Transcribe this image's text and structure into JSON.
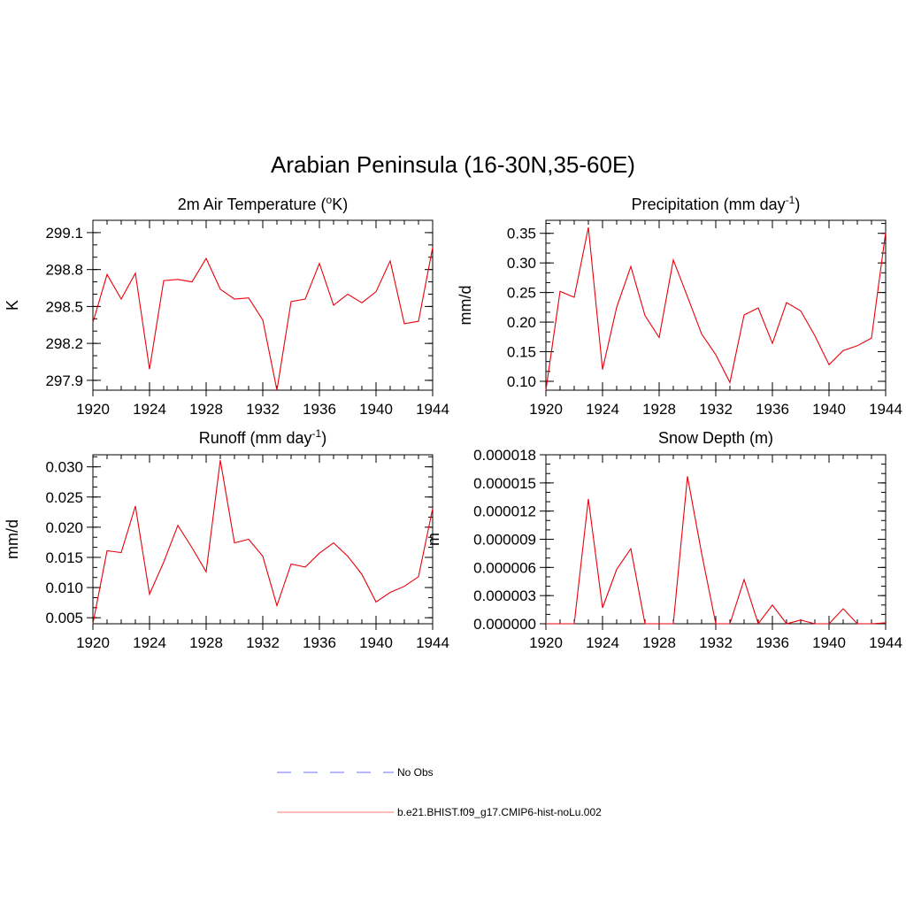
{
  "title": "Arabian Peninsula (16-30N,35-60E)",
  "colors": {
    "model": "#e8000b",
    "obs": "#a0a0ff",
    "legend_model": "#ff9090"
  },
  "legend": [
    {
      "label": "No Obs",
      "style": "dashed"
    },
    {
      "label": "b.e21.BHIST.f09_g17.CMIP6-hist-noLu.002",
      "style": "solid"
    }
  ],
  "chart_data": [
    {
      "type": "line",
      "title_parts": [
        "2m Air Temperature (",
        "o",
        "K)"
      ],
      "title_sup_index": 1,
      "ylabel": "K",
      "xlim": [
        1920,
        1944
      ],
      "ylim": [
        297.82,
        299.2
      ],
      "xticks": [
        "1920",
        "1924",
        "1928",
        "1932",
        "1936",
        "1940",
        "1944"
      ],
      "yticks": [
        "297.9",
        "298.2",
        "298.5",
        "298.8",
        "299.1"
      ],
      "yticks_values": [
        297.9,
        298.2,
        298.5,
        298.8,
        299.1
      ],
      "x": [
        1920,
        1921,
        1922,
        1923,
        1924,
        1925,
        1926,
        1927,
        1928,
        1929,
        1930,
        1931,
        1932,
        1933,
        1934,
        1935,
        1936,
        1937,
        1938,
        1939,
        1940,
        1941,
        1942,
        1943,
        1944
      ],
      "series": [
        {
          "values": [
            298.37,
            298.76,
            298.56,
            298.77,
            297.99,
            298.71,
            298.72,
            298.7,
            298.89,
            298.64,
            298.56,
            298.57,
            298.39,
            297.82,
            298.54,
            298.56,
            298.85,
            298.51,
            298.6,
            298.53,
            298.62,
            298.87,
            298.36,
            298.38,
            298.98
          ]
        }
      ]
    },
    {
      "type": "line",
      "title_parts": [
        "Precipitation (mm day",
        "-1",
        ")"
      ],
      "title_sup_index": 1,
      "ylabel": "mm/d",
      "xlim": [
        1920,
        1944
      ],
      "ylim": [
        0.085,
        0.372
      ],
      "xticks": [
        "1920",
        "1924",
        "1928",
        "1932",
        "1936",
        "1940",
        "1944"
      ],
      "yticks": [
        "0.10",
        "0.15",
        "0.20",
        "0.25",
        "0.30",
        "0.35"
      ],
      "yticks_values": [
        0.1,
        0.15,
        0.2,
        0.25,
        0.3,
        0.35
      ],
      "x": [
        1920,
        1921,
        1922,
        1923,
        1924,
        1925,
        1926,
        1927,
        1928,
        1929,
        1930,
        1931,
        1932,
        1933,
        1934,
        1935,
        1936,
        1937,
        1938,
        1939,
        1940,
        1941,
        1942,
        1943,
        1944
      ],
      "series": [
        {
          "values": [
            0.085,
            0.252,
            0.242,
            0.36,
            0.12,
            0.225,
            0.294,
            0.211,
            0.174,
            0.305,
            0.243,
            0.18,
            0.145,
            0.098,
            0.212,
            0.224,
            0.164,
            0.233,
            0.219,
            0.177,
            0.128,
            0.152,
            0.16,
            0.173,
            0.352
          ]
        }
      ]
    },
    {
      "type": "line",
      "title_parts": [
        "Runoff (mm day",
        "-1",
        ")"
      ],
      "title_sup_index": 1,
      "ylabel": "mm/d",
      "xlim": [
        1920,
        1944
      ],
      "ylim": [
        0.004,
        0.032
      ],
      "xticks": [
        "1920",
        "1924",
        "1928",
        "1932",
        "1936",
        "1940",
        "1944"
      ],
      "yticks": [
        "0.005",
        "0.010",
        "0.015",
        "0.020",
        "0.025",
        "0.030"
      ],
      "yticks_values": [
        0.005,
        0.01,
        0.015,
        0.02,
        0.025,
        0.03
      ],
      "x": [
        1920,
        1921,
        1922,
        1923,
        1924,
        1925,
        1926,
        1927,
        1928,
        1929,
        1930,
        1931,
        1932,
        1933,
        1934,
        1935,
        1936,
        1937,
        1938,
        1939,
        1940,
        1941,
        1942,
        1943,
        1944
      ],
      "series": [
        {
          "values": [
            0.004,
            0.0161,
            0.0158,
            0.0235,
            0.0089,
            0.0142,
            0.0203,
            0.0166,
            0.0126,
            0.0311,
            0.0174,
            0.018,
            0.0152,
            0.007,
            0.0139,
            0.0134,
            0.0157,
            0.0174,
            0.0152,
            0.0122,
            0.0076,
            0.0092,
            0.0102,
            0.0118,
            0.0231
          ]
        }
      ]
    },
    {
      "type": "line",
      "title_parts": [
        "Snow Depth (m)"
      ],
      "title_sup_index": -1,
      "ylabel": "m",
      "xlim": [
        1920,
        1944
      ],
      "ylim": [
        0.0,
        1.8e-05
      ],
      "xticks": [
        "1920",
        "1924",
        "1928",
        "1932",
        "1936",
        "1940",
        "1944"
      ],
      "yticks": [
        "0.000000",
        "0.000003",
        "0.000006",
        "0.000009",
        "0.000012",
        "0.000015",
        "0.000018"
      ],
      "yticks_values": [
        0.0,
        3e-06,
        6e-06,
        9e-06,
        1.2e-05,
        1.5e-05,
        1.8e-05
      ],
      "x": [
        1920,
        1921,
        1922,
        1923,
        1924,
        1925,
        1926,
        1927,
        1928,
        1929,
        1930,
        1931,
        1932,
        1933,
        1934,
        1935,
        1936,
        1937,
        1938,
        1939,
        1940,
        1941,
        1942,
        1943,
        1944
      ],
      "series": [
        {
          "values": [
            0.0,
            0.0,
            0.0,
            1.33e-05,
            1.7e-06,
            5.8e-06,
            8e-06,
            0.0,
            0.0,
            0.0,
            1.57e-05,
            7.5e-06,
            0.0,
            0.0,
            4.7e-06,
            0.0,
            2e-06,
            0.0,
            4e-07,
            0.0,
            0.0,
            1.6e-06,
            0.0,
            0.0,
            1e-07
          ]
        }
      ]
    }
  ]
}
